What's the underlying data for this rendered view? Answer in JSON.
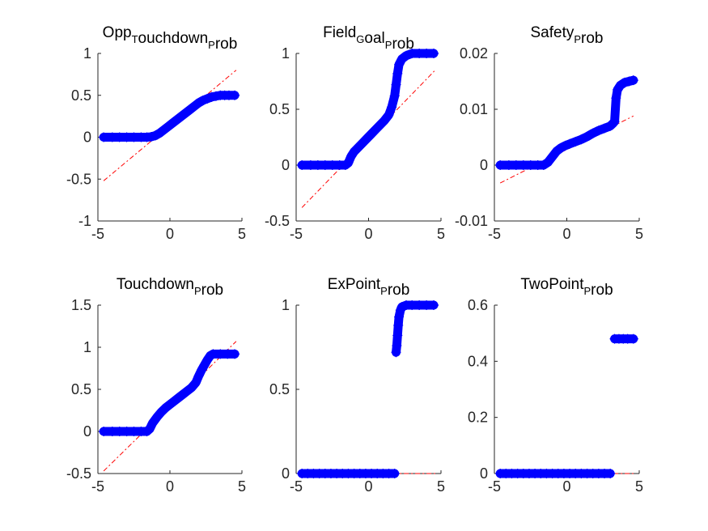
{
  "chart_data": [
    {
      "type": "scatter",
      "title": "OppTouchdownProb",
      "title_parts": [
        {
          "t": "Opp",
          "s": "T"
        },
        {
          "t": "ouchdown",
          "s": "P"
        },
        {
          "t": "rob",
          "s": ""
        }
      ],
      "xlim": [
        -5,
        5
      ],
      "ylim": [
        -1,
        1
      ],
      "xticks": [
        -5,
        0,
        5
      ],
      "yticks": [
        -1,
        -0.5,
        0,
        0.5,
        1
      ],
      "xtick_labels": [
        "-5",
        "0",
        "5"
      ],
      "ytick_labels": [
        "-1",
        "-0.5",
        "0",
        "0.5",
        "1"
      ],
      "ref_line": [
        [
          -4.6,
          -0.52
        ],
        [
          4.6,
          0.8
        ]
      ],
      "points": [
        [
          -4.6,
          0
        ],
        [
          -4.0,
          0
        ],
        [
          -3.5,
          0
        ],
        [
          -3.0,
          0
        ],
        [
          -2.5,
          0
        ],
        [
          -2.0,
          0
        ],
        [
          -1.6,
          0
        ],
        [
          -1.3,
          0.005
        ],
        [
          -1.0,
          0.02
        ],
        [
          -0.7,
          0.05
        ],
        [
          -0.4,
          0.09
        ],
        [
          -0.1,
          0.13
        ],
        [
          0.2,
          0.17
        ],
        [
          0.5,
          0.21
        ],
        [
          0.8,
          0.25
        ],
        [
          1.1,
          0.29
        ],
        [
          1.4,
          0.33
        ],
        [
          1.7,
          0.37
        ],
        [
          2.0,
          0.41
        ],
        [
          2.3,
          0.44
        ],
        [
          2.6,
          0.46
        ],
        [
          2.9,
          0.48
        ],
        [
          3.2,
          0.49
        ],
        [
          3.5,
          0.5
        ],
        [
          3.8,
          0.5
        ],
        [
          4.1,
          0.5
        ],
        [
          4.5,
          0.5
        ]
      ]
    },
    {
      "type": "scatter",
      "title": "FieldGoalProb",
      "title_parts": [
        {
          "t": "Field",
          "s": "G"
        },
        {
          "t": "oal",
          "s": "P"
        },
        {
          "t": "rob",
          "s": ""
        }
      ],
      "xlim": [
        -5,
        5
      ],
      "ylim": [
        -0.5,
        1
      ],
      "xticks": [
        -5,
        0,
        5
      ],
      "yticks": [
        -0.5,
        0,
        0.5,
        1
      ],
      "xtick_labels": [
        "-5",
        "0",
        "5"
      ],
      "ytick_labels": [
        "-0.5",
        "0",
        "0.5",
        "1"
      ],
      "ref_line": [
        [
          -4.6,
          -0.38
        ],
        [
          4.6,
          0.85
        ]
      ],
      "points": [
        [
          -4.6,
          0
        ],
        [
          -4.0,
          0
        ],
        [
          -3.5,
          0
        ],
        [
          -3.0,
          0
        ],
        [
          -2.5,
          0
        ],
        [
          -2.0,
          0
        ],
        [
          -1.6,
          0
        ],
        [
          -1.4,
          0.02
        ],
        [
          -1.2,
          0.08
        ],
        [
          -1.0,
          0.12
        ],
        [
          -0.7,
          0.16
        ],
        [
          -0.4,
          0.2
        ],
        [
          -0.1,
          0.24
        ],
        [
          0.2,
          0.28
        ],
        [
          0.5,
          0.32
        ],
        [
          0.8,
          0.36
        ],
        [
          1.1,
          0.4
        ],
        [
          1.4,
          0.45
        ],
        [
          1.6,
          0.52
        ],
        [
          1.8,
          0.62
        ],
        [
          1.9,
          0.72
        ],
        [
          2.0,
          0.82
        ],
        [
          2.1,
          0.9
        ],
        [
          2.3,
          0.95
        ],
        [
          2.6,
          0.98
        ],
        [
          3.0,
          1.0
        ],
        [
          3.5,
          1.0
        ],
        [
          4.0,
          1.0
        ],
        [
          4.5,
          1.0
        ]
      ]
    },
    {
      "type": "scatter",
      "title": "SafetyProb",
      "title_parts": [
        {
          "t": "Safety",
          "s": "P"
        },
        {
          "t": "rob",
          "s": ""
        }
      ],
      "xlim": [
        -5,
        5
      ],
      "ylim": [
        -0.01,
        0.02
      ],
      "xticks": [
        -5,
        0,
        5
      ],
      "yticks": [
        -0.01,
        0,
        0.01,
        0.02
      ],
      "xtick_labels": [
        "-5",
        "0",
        "5"
      ],
      "ytick_labels": [
        "-0.01",
        "0",
        "0.01",
        "0.02"
      ],
      "ref_line": [
        [
          -4.6,
          -0.0032
        ],
        [
          4.6,
          0.0088
        ]
      ],
      "points": [
        [
          -4.6,
          0
        ],
        [
          -4.0,
          0
        ],
        [
          -3.5,
          0
        ],
        [
          -3.0,
          0
        ],
        [
          -2.5,
          0
        ],
        [
          -2.0,
          0
        ],
        [
          -1.6,
          0
        ],
        [
          -1.3,
          0.0005
        ],
        [
          -1.0,
          0.0015
        ],
        [
          -0.7,
          0.0025
        ],
        [
          -0.4,
          0.0031
        ],
        [
          -0.1,
          0.0035
        ],
        [
          0.2,
          0.0038
        ],
        [
          0.6,
          0.0042
        ],
        [
          1.0,
          0.0046
        ],
        [
          1.4,
          0.0051
        ],
        [
          1.8,
          0.0057
        ],
        [
          2.2,
          0.0062
        ],
        [
          2.6,
          0.0066
        ],
        [
          3.0,
          0.007
        ],
        [
          3.2,
          0.0075
        ],
        [
          3.3,
          0.0078
        ],
        [
          3.4,
          0.012
        ],
        [
          3.5,
          0.0135
        ],
        [
          3.7,
          0.0143
        ],
        [
          4.0,
          0.0148
        ],
        [
          4.3,
          0.015
        ],
        [
          4.6,
          0.0152
        ]
      ]
    },
    {
      "type": "scatter",
      "title": "TouchdownProb",
      "title_parts": [
        {
          "t": "Touchdown",
          "s": "P"
        },
        {
          "t": "rob",
          "s": ""
        }
      ],
      "xlim": [
        -5,
        5
      ],
      "ylim": [
        -0.5,
        1.5
      ],
      "xticks": [
        -5,
        0,
        5
      ],
      "yticks": [
        -0.5,
        0,
        0.5,
        1,
        1.5
      ],
      "xtick_labels": [
        "-5",
        "0",
        "5"
      ],
      "ytick_labels": [
        "-0.5",
        "0",
        "0.5",
        "1",
        "1.5"
      ],
      "ref_line": [
        [
          -4.6,
          -0.47
        ],
        [
          4.6,
          1.07
        ]
      ],
      "points": [
        [
          -4.6,
          0
        ],
        [
          -4.0,
          0
        ],
        [
          -3.5,
          0
        ],
        [
          -3.0,
          0
        ],
        [
          -2.5,
          0
        ],
        [
          -2.0,
          0
        ],
        [
          -1.6,
          0
        ],
        [
          -1.4,
          0.03
        ],
        [
          -1.2,
          0.1
        ],
        [
          -0.9,
          0.17
        ],
        [
          -0.6,
          0.23
        ],
        [
          -0.3,
          0.28
        ],
        [
          0.0,
          0.32
        ],
        [
          0.3,
          0.36
        ],
        [
          0.6,
          0.4
        ],
        [
          0.9,
          0.44
        ],
        [
          1.2,
          0.48
        ],
        [
          1.5,
          0.52
        ],
        [
          1.8,
          0.58
        ],
        [
          2.0,
          0.66
        ],
        [
          2.2,
          0.73
        ],
        [
          2.4,
          0.79
        ],
        [
          2.6,
          0.85
        ],
        [
          2.8,
          0.9
        ],
        [
          3.0,
          0.92
        ],
        [
          3.5,
          0.92
        ],
        [
          4.0,
          0.92
        ],
        [
          4.5,
          0.92
        ]
      ]
    },
    {
      "type": "scatter",
      "title": "ExPointProb",
      "title_parts": [
        {
          "t": "ExPoint",
          "s": "P"
        },
        {
          "t": "rob",
          "s": ""
        }
      ],
      "xlim": [
        -5,
        5
      ],
      "ylim": [
        0,
        1
      ],
      "xticks": [
        -5,
        0,
        5
      ],
      "yticks": [
        0,
        0.5,
        1
      ],
      "xtick_labels": [
        "-5",
        "0",
        "5"
      ],
      "ytick_labels": [
        "0",
        "0.5",
        "1"
      ],
      "ref_line": [
        [
          -4.6,
          0.0
        ],
        [
          4.6,
          0.0
        ]
      ],
      "points": [
        [
          -4.6,
          0
        ],
        [
          -4.2,
          0
        ],
        [
          -3.8,
          0
        ],
        [
          -3.4,
          0
        ],
        [
          -3.0,
          0
        ],
        [
          -2.6,
          0
        ],
        [
          -2.2,
          0
        ],
        [
          -1.8,
          0
        ],
        [
          -1.4,
          0
        ],
        [
          -1.0,
          0
        ],
        [
          -0.6,
          0
        ],
        [
          -0.2,
          0
        ],
        [
          0.2,
          0
        ],
        [
          0.6,
          0
        ],
        [
          1.0,
          0
        ],
        [
          1.4,
          0
        ],
        [
          1.8,
          0
        ],
        [
          1.9,
          0.72
        ],
        [
          1.95,
          0.76
        ],
        [
          2.0,
          0.82
        ],
        [
          2.05,
          0.88
        ],
        [
          2.1,
          0.93
        ],
        [
          2.2,
          0.97
        ],
        [
          2.3,
          0.99
        ],
        [
          2.6,
          1.0
        ],
        [
          3.0,
          1.0
        ],
        [
          3.5,
          1.0
        ],
        [
          4.0,
          1.0
        ],
        [
          4.5,
          1.0
        ]
      ]
    },
    {
      "type": "scatter",
      "title": "TwoPointProb",
      "title_parts": [
        {
          "t": "TwoPoint",
          "s": "P"
        },
        {
          "t": "rob",
          "s": ""
        }
      ],
      "xlim": [
        -5,
        5
      ],
      "ylim": [
        0,
        0.6
      ],
      "xticks": [
        -5,
        0,
        5
      ],
      "yticks": [
        0,
        0.2,
        0.4,
        0.6
      ],
      "xtick_labels": [
        "-5",
        "0",
        "5"
      ],
      "ytick_labels": [
        "0",
        "0.2",
        "0.4",
        "0.6"
      ],
      "ref_line": [
        [
          -4.6,
          0.0
        ],
        [
          4.6,
          0.0
        ]
      ],
      "points": [
        [
          -4.6,
          0
        ],
        [
          -4.2,
          0
        ],
        [
          -3.8,
          0
        ],
        [
          -3.4,
          0
        ],
        [
          -3.0,
          0
        ],
        [
          -2.6,
          0
        ],
        [
          -2.2,
          0
        ],
        [
          -1.8,
          0
        ],
        [
          -1.4,
          0
        ],
        [
          -1.0,
          0
        ],
        [
          -0.6,
          0
        ],
        [
          -0.2,
          0
        ],
        [
          0.2,
          0
        ],
        [
          0.6,
          0
        ],
        [
          1.0,
          0
        ],
        [
          1.4,
          0
        ],
        [
          1.8,
          0
        ],
        [
          2.2,
          0
        ],
        [
          2.6,
          0
        ],
        [
          3.0,
          0
        ],
        [
          3.3,
          0.48
        ],
        [
          3.6,
          0.48
        ],
        [
          3.9,
          0.48
        ],
        [
          4.2,
          0.48
        ],
        [
          4.6,
          0.48
        ]
      ]
    }
  ]
}
